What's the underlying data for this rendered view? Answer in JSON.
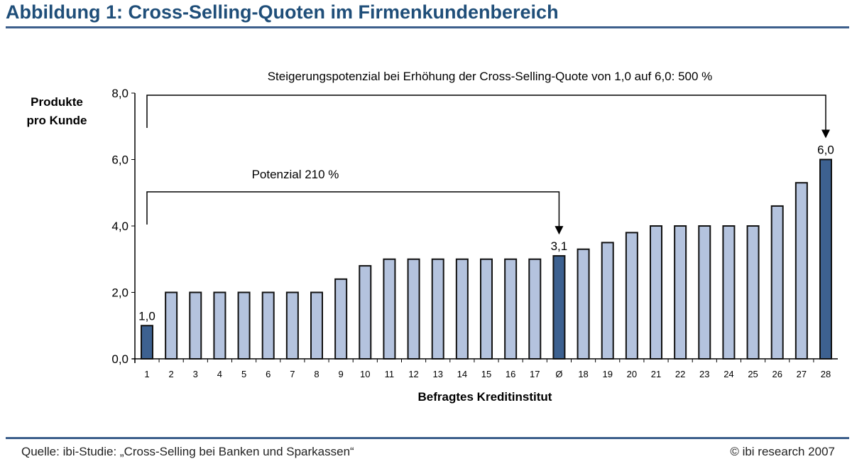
{
  "header": {
    "title": "Abbildung 1: Cross-Selling-Quoten im Firmenkundenbereich"
  },
  "footer": {
    "source": "Quelle: ibi-Studie: „Cross-Selling bei Banken und Sparkassen“",
    "copyright": "© ibi research 2007"
  },
  "colors": {
    "title": "#1f4e79",
    "bar": "#b4c3de",
    "highlight_bar": "#3d6190",
    "rule": "#3d5f8c"
  },
  "chart_data": {
    "type": "bar",
    "ylabel": "Produkte pro Kunde",
    "ylabel_lines": [
      "Produkte",
      "pro Kunde"
    ],
    "xlabel": "Befragtes Kreditinstitut",
    "ylim": [
      0,
      8
    ],
    "yticks": [
      "0,0",
      "2,0",
      "4,0",
      "6,0",
      "8,0"
    ],
    "grid": false,
    "categories": [
      "1",
      "2",
      "3",
      "4",
      "5",
      "6",
      "7",
      "8",
      "9",
      "10",
      "11",
      "12",
      "13",
      "14",
      "15",
      "16",
      "17",
      "Ø",
      "18",
      "19",
      "20",
      "21",
      "22",
      "23",
      "24",
      "25",
      "26",
      "27",
      "28"
    ],
    "values": [
      1.0,
      2.0,
      2.0,
      2.0,
      2.0,
      2.0,
      2.0,
      2.0,
      2.4,
      2.8,
      3.0,
      3.0,
      3.0,
      3.0,
      3.0,
      3.0,
      3.0,
      3.1,
      3.3,
      3.5,
      3.8,
      4.0,
      4.0,
      4.0,
      4.0,
      4.0,
      4.6,
      5.3,
      6.0
    ],
    "highlighted": [
      "1",
      "Ø",
      "28"
    ],
    "data_labels": {
      "1": "1,0",
      "Ø": "3,1",
      "28": "6,0"
    },
    "annotations": [
      {
        "text": "Steigerungspotenzial bei Erhöhung der Cross-Selling-Quote von 1,0 auf 6,0: 500 %",
        "from": "1",
        "to": "28"
      },
      {
        "text": "Potenzial 210 %",
        "from": "1",
        "to": "Ø"
      }
    ]
  }
}
